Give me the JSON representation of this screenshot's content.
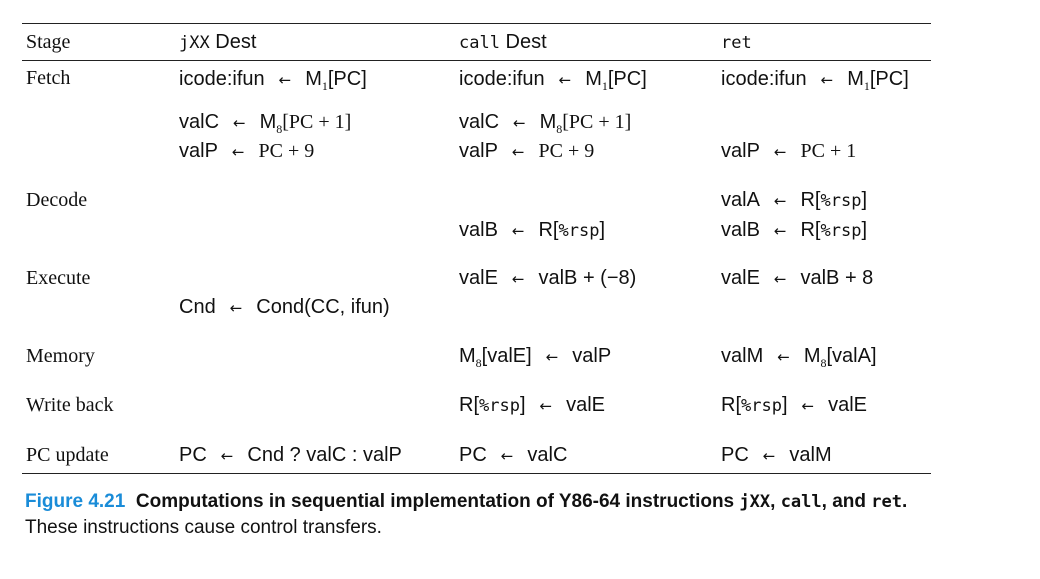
{
  "table": {
    "headers": {
      "stage": "Stage",
      "col1_code": "jXX",
      "col1_text": " Dest",
      "col2_code": "call",
      "col2_text": " Dest",
      "col3_code": "ret"
    },
    "stages": {
      "fetch": "Fetch",
      "decode": "Decode",
      "execute": "Execute",
      "memory": "Memory",
      "writeback": "Write back",
      "pc_update": "PC update"
    },
    "fetch": {
      "jxx": [
        {
          "lhs": "icode:ifun",
          "rhs_pre": "M",
          "rhs_sub": "1",
          "rhs_post": "[PC]"
        },
        {
          "lhs": "valC",
          "rhs_pre": "M",
          "rhs_sub": "8",
          "rhs_post": "[PC + 1]"
        },
        {
          "lhs": "valP",
          "rhs": "PC + 9"
        }
      ],
      "call": [
        {
          "lhs": "icode:ifun",
          "rhs_pre": "M",
          "rhs_sub": "1",
          "rhs_post": "[PC]"
        },
        {
          "lhs": "valC",
          "rhs_pre": "M",
          "rhs_sub": "8",
          "rhs_post": "[PC + 1]"
        },
        {
          "lhs": "valP",
          "rhs": "PC + 9"
        }
      ],
      "ret": [
        {
          "lhs": "icode:ifun",
          "rhs_pre": "M",
          "rhs_sub": "1",
          "rhs_post": "[PC]"
        },
        {
          "lhs": "valP",
          "rhs": "PC + 1"
        }
      ]
    },
    "decode": {
      "call_valB": {
        "lhs": "valB",
        "rhs_pre": "R[",
        "rhs_code": "%rsp",
        "rhs_post": "]"
      },
      "ret_valA": {
        "lhs": "valA",
        "rhs_pre": "R[",
        "rhs_code": "%rsp",
        "rhs_post": "]"
      },
      "ret_valB": {
        "lhs": "valB",
        "rhs_pre": "R[",
        "rhs_code": "%rsp",
        "rhs_post": "]"
      }
    },
    "execute": {
      "call": {
        "lhs": "valE",
        "rhs": "valB + (−8)"
      },
      "ret": {
        "lhs": "valE",
        "rhs": "valB + 8"
      },
      "jxx": {
        "lhs": "Cnd",
        "rhs": "Cond(CC, ifun)"
      }
    },
    "memory": {
      "call": {
        "lhs_pre": "M",
        "lhs_sub": "8",
        "lhs_post": "[valE]",
        "rhs": "valP"
      },
      "ret": {
        "lhs": "valM",
        "rhs_pre": "M",
        "rhs_sub": "8",
        "rhs_post": "[valA]"
      }
    },
    "writeback": {
      "call": {
        "lhs_pre": "R[",
        "lhs_code": "%rsp",
        "lhs_post": "]",
        "rhs": "valE"
      },
      "ret": {
        "lhs_pre": "R[",
        "lhs_code": "%rsp",
        "lhs_post": "]",
        "rhs": "valE"
      }
    },
    "pc_update": {
      "jxx": {
        "lhs": "PC",
        "rhs": "Cnd ? valC : valP"
      },
      "call": {
        "lhs": "PC",
        "rhs": "valC"
      },
      "ret": {
        "lhs": "PC",
        "rhs": "valM"
      }
    },
    "arrow": "←"
  },
  "caption": {
    "label": "Figure 4.21",
    "title_pre": "Computations in sequential implementation of Y86-64 instructions ",
    "code1": "jXX",
    "sep1": ", ",
    "code2": "call",
    "sep2": ", and ",
    "code3": "ret",
    "title_end": ".",
    "body": "These instructions cause control transfers."
  }
}
